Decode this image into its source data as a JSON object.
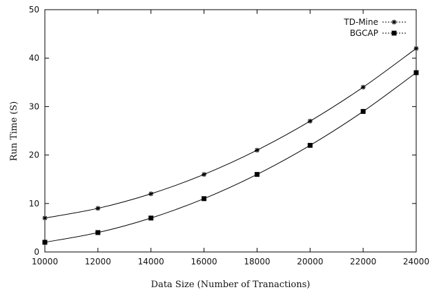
{
  "chart_data": {
    "type": "line",
    "title": "",
    "xlabel": "Data Size (Number of Tranactions)",
    "ylabel": "Run Time (S)",
    "xlim": [
      10000,
      24000
    ],
    "ylim": [
      0,
      50
    ],
    "xticks": [
      "10000",
      "12000",
      "14000",
      "16000",
      "18000",
      "20000",
      "22000",
      "24000"
    ],
    "yticks": [
      "0",
      "10",
      "20",
      "30",
      "40",
      "50"
    ],
    "grid": false,
    "legend_position": "top-right",
    "x": [
      10000,
      12000,
      14000,
      16000,
      18000,
      20000,
      22000,
      24000
    ],
    "series": [
      {
        "name": "TD-Mine",
        "marker": "star",
        "values": [
          7,
          9,
          12,
          16,
          21,
          27,
          34,
          42
        ]
      },
      {
        "name": "BGCAP",
        "marker": "filled-square",
        "values": [
          2,
          4,
          7,
          11,
          16,
          22,
          29,
          37
        ]
      }
    ],
    "colors": {
      "line": "#000000",
      "axis": "#000000"
    }
  }
}
